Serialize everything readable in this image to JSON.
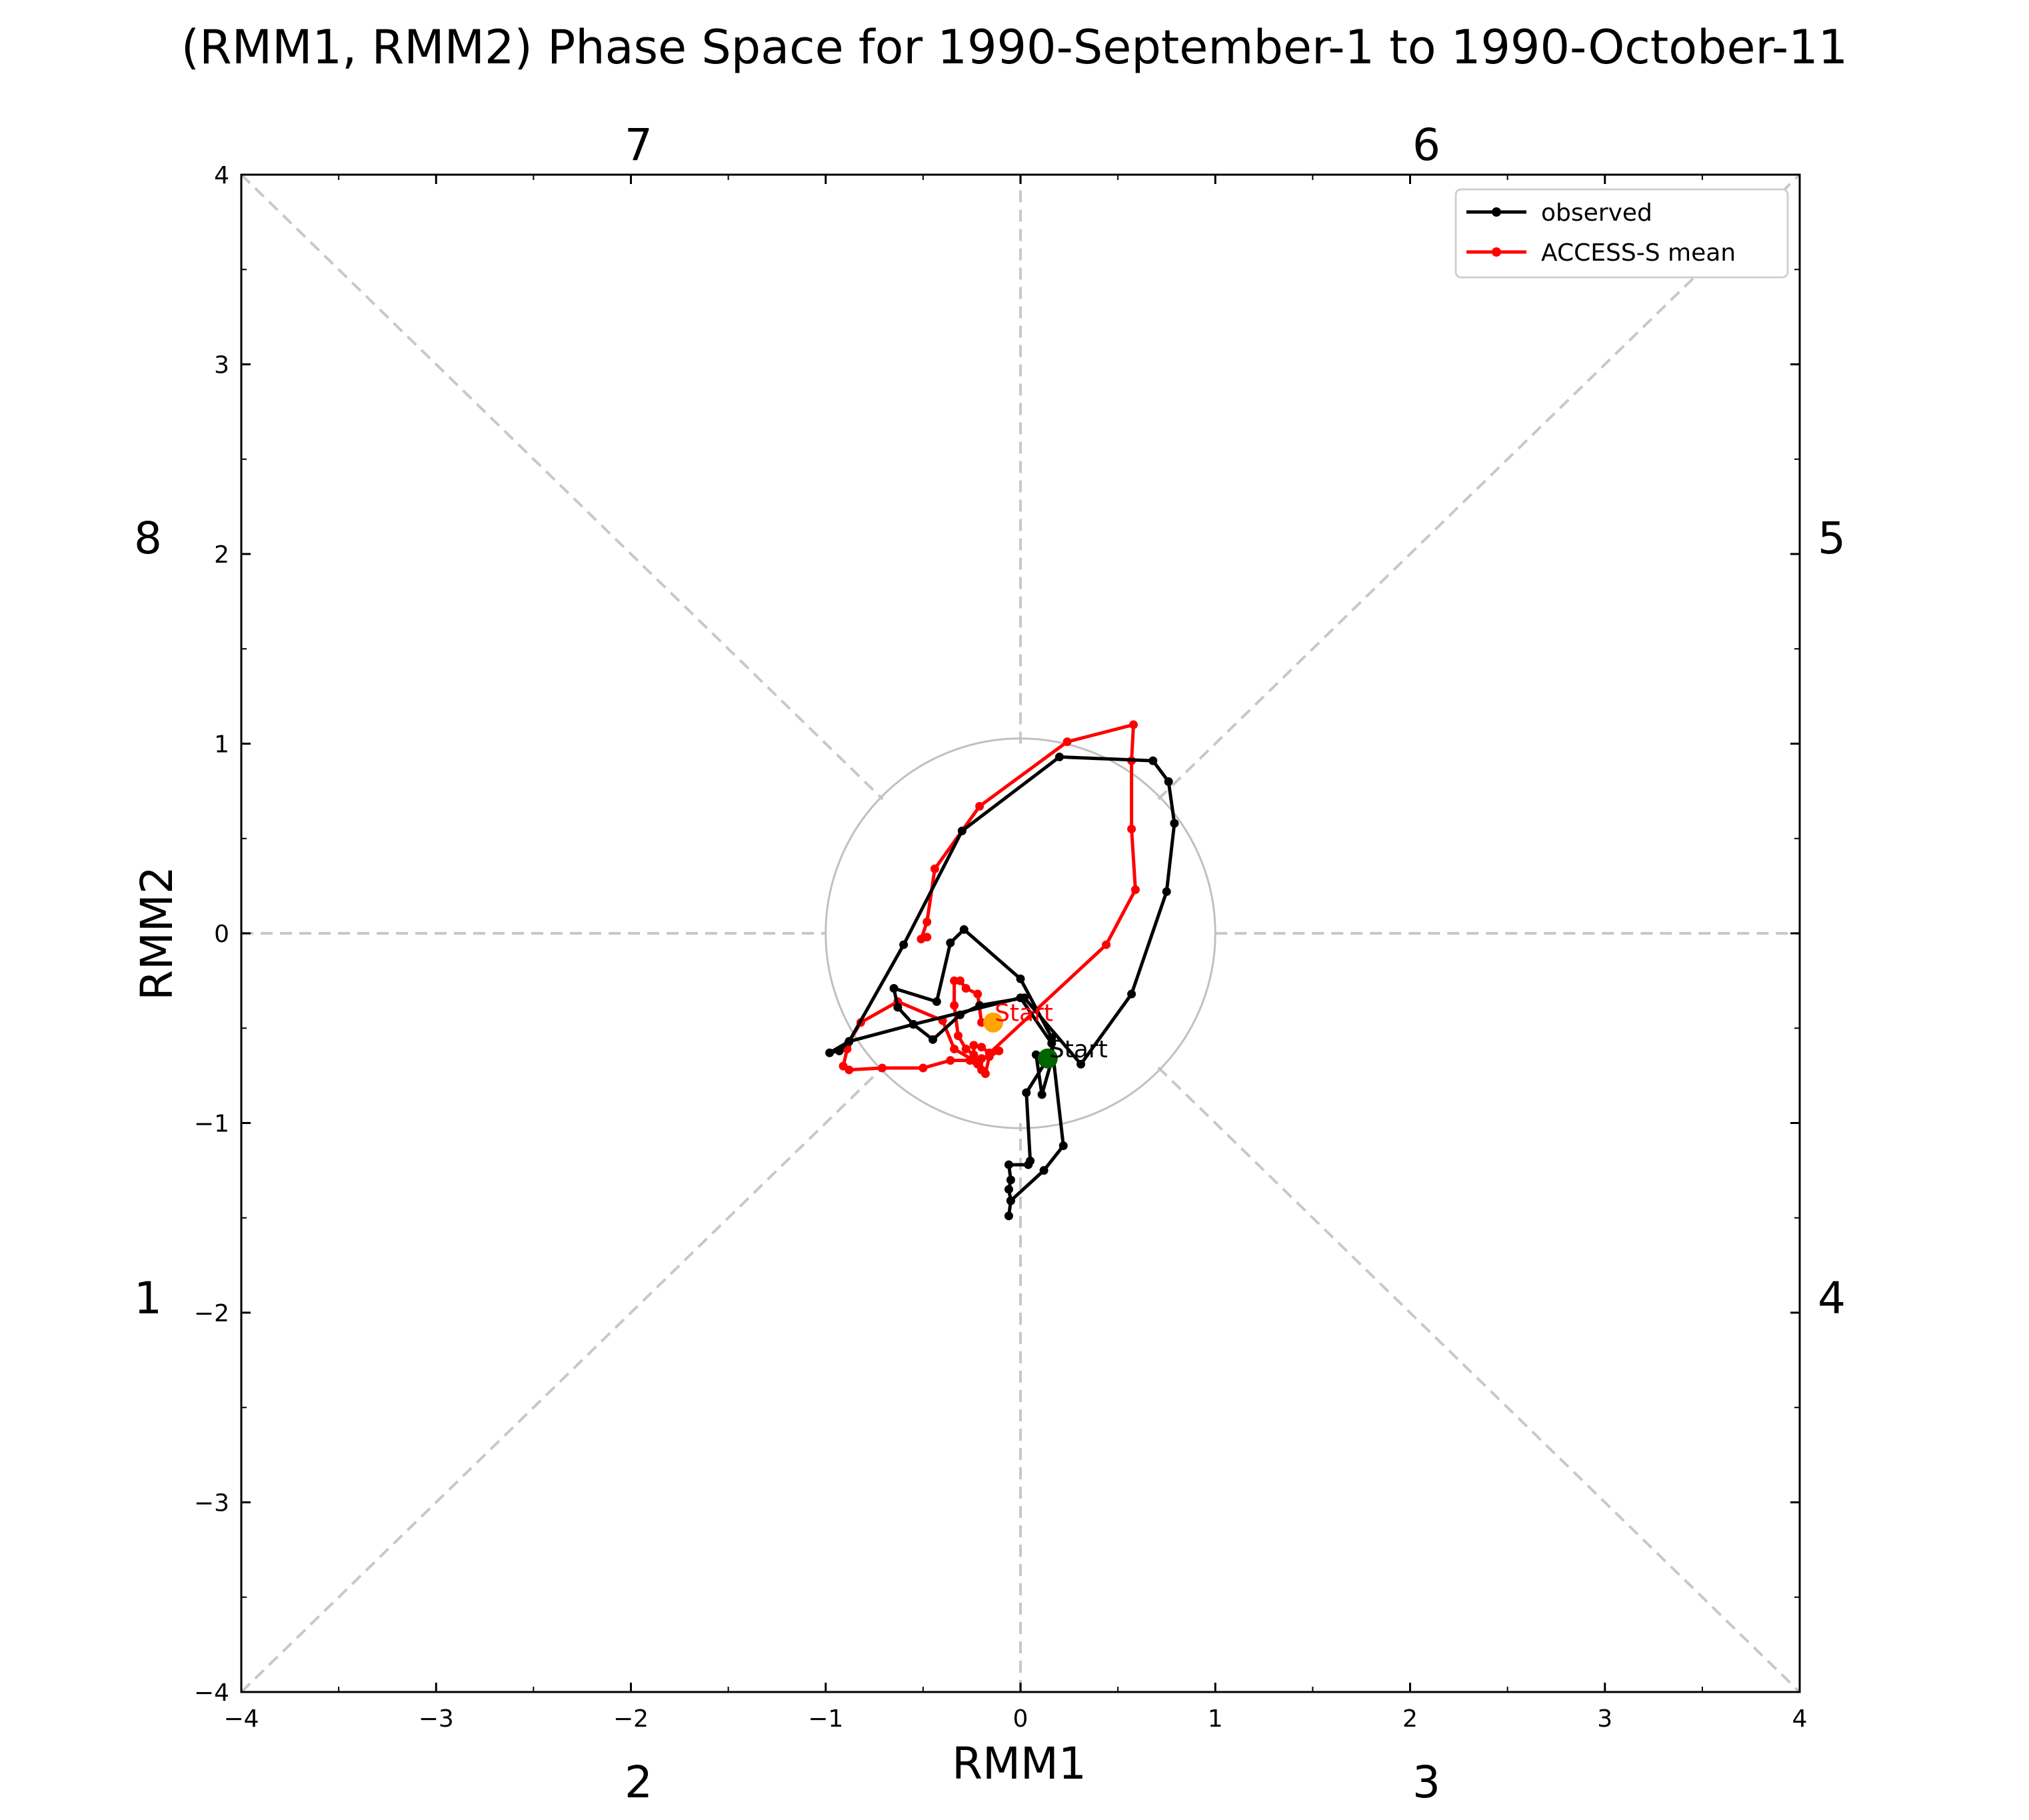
{
  "chart_data": {
    "type": "line",
    "title": "(RMM1, RMM2) Phase Space for 1990-September-1 to 1990-October-11",
    "xlabel": "RMM1",
    "ylabel": "RMM2",
    "xlim": [
      -4,
      4
    ],
    "ylim": [
      -4,
      4
    ],
    "x_ticks": [
      -4,
      -3,
      -2,
      -1,
      0,
      1,
      2,
      3,
      4
    ],
    "y_ticks": [
      -4,
      -3,
      -2,
      -1,
      0,
      1,
      2,
      3,
      4
    ],
    "x_tick_labels": [
      "−4",
      "−3",
      "−2",
      "−1",
      "0",
      "1",
      "2",
      "3",
      "4"
    ],
    "y_tick_labels": [
      "−4",
      "−3",
      "−2",
      "−1",
      "0",
      "1",
      "2",
      "3",
      "4"
    ],
    "unit_circle_radius": 1,
    "grid": false,
    "legend_position": "top-right",
    "phase_labels": [
      {
        "text": "7",
        "pos": "top-left"
      },
      {
        "text": "6",
        "pos": "top-right"
      },
      {
        "text": "8",
        "pos": "left-upper"
      },
      {
        "text": "5",
        "pos": "right-upper"
      },
      {
        "text": "1",
        "pos": "left-lower"
      },
      {
        "text": "4",
        "pos": "right-lower"
      },
      {
        "text": "2",
        "pos": "bottom-left"
      },
      {
        "text": "3",
        "pos": "bottom-right"
      }
    ],
    "series": [
      {
        "name": "observed",
        "color": "#000000",
        "start_marker_color": "#006400",
        "start_label": "Start",
        "points": [
          [
            0.14,
            -0.66
          ],
          [
            0.08,
            -0.64
          ],
          [
            0.11,
            -0.85
          ],
          [
            0.16,
            -0.67
          ],
          [
            0.16,
            -0.55
          ],
          [
            0.0,
            -0.24
          ],
          [
            -0.29,
            0.02
          ],
          [
            -0.36,
            -0.05
          ],
          [
            -0.43,
            -0.36
          ],
          [
            -0.65,
            -0.29
          ],
          [
            -0.63,
            -0.39
          ],
          [
            -0.55,
            -0.48
          ],
          [
            -0.45,
            -0.56
          ],
          [
            -0.31,
            -0.43
          ],
          [
            -0.21,
            -0.38
          ],
          [
            0.02,
            -0.34
          ],
          [
            0.31,
            -0.69
          ],
          [
            0.57,
            -0.32
          ],
          [
            0.75,
            0.22
          ],
          [
            0.79,
            0.58
          ],
          [
            0.76,
            0.8
          ],
          [
            0.68,
            0.91
          ],
          [
            0.2,
            0.93
          ],
          [
            -0.3,
            0.54
          ],
          [
            -0.6,
            -0.06
          ],
          [
            -0.88,
            -0.57
          ],
          [
            -0.93,
            -0.62
          ],
          [
            -0.98,
            -0.63
          ],
          [
            -0.88,
            -0.57
          ],
          [
            -0.55,
            -0.48
          ],
          [
            0.0,
            -0.34
          ],
          [
            0.16,
            -0.58
          ],
          [
            0.22,
            -1.12
          ],
          [
            0.12,
            -1.25
          ],
          [
            -0.05,
            -1.41
          ],
          [
            -0.06,
            -1.49
          ],
          [
            -0.05,
            -1.41
          ],
          [
            -0.06,
            -1.35
          ],
          [
            -0.05,
            -1.3
          ],
          [
            -0.06,
            -1.22
          ],
          [
            0.04,
            -1.22
          ],
          [
            0.05,
            -1.2
          ],
          [
            0.03,
            -0.84
          ],
          [
            0.14,
            -0.66
          ]
        ]
      },
      {
        "name": "ACCESS-S mean",
        "color": "#ff0000",
        "start_marker_color": "#ffa500",
        "start_label": "Start",
        "points": [
          [
            -0.14,
            -0.47
          ],
          [
            -0.2,
            -0.47
          ],
          [
            -0.22,
            -0.32
          ],
          [
            -0.28,
            -0.29
          ],
          [
            -0.31,
            -0.25
          ],
          [
            -0.34,
            -0.25
          ],
          [
            -0.34,
            -0.38
          ],
          [
            -0.32,
            -0.54
          ],
          [
            -0.28,
            -0.61
          ],
          [
            -0.24,
            -0.64
          ],
          [
            -0.24,
            -0.59
          ],
          [
            -0.2,
            -0.6
          ],
          [
            -0.16,
            -0.63
          ],
          [
            -0.11,
            -0.62
          ],
          [
            -0.16,
            -0.65
          ],
          [
            -0.18,
            -0.74
          ],
          [
            -0.2,
            -0.72
          ],
          [
            -0.2,
            -0.66
          ],
          [
            -0.26,
            -0.67
          ],
          [
            -0.36,
            -0.67
          ],
          [
            -0.5,
            -0.71
          ],
          [
            -0.71,
            -0.71
          ],
          [
            -0.88,
            -0.72
          ],
          [
            -0.91,
            -0.7
          ],
          [
            -0.89,
            -0.61
          ],
          [
            -0.89,
            -0.59
          ],
          [
            -0.82,
            -0.47
          ],
          [
            -0.63,
            -0.36
          ],
          [
            -0.4,
            -0.46
          ],
          [
            -0.34,
            -0.61
          ],
          [
            -0.24,
            -0.67
          ],
          [
            -0.22,
            -0.69
          ],
          [
            0.44,
            -0.06
          ],
          [
            0.59,
            0.23
          ],
          [
            0.57,
            0.55
          ],
          [
            0.57,
            0.91
          ],
          [
            0.58,
            1.1
          ],
          [
            0.24,
            1.01
          ],
          [
            -0.21,
            0.67
          ],
          [
            -0.44,
            0.34
          ],
          [
            -0.48,
            0.06
          ],
          [
            -0.51,
            -0.03
          ],
          [
            -0.48,
            -0.02
          ]
        ]
      }
    ]
  }
}
